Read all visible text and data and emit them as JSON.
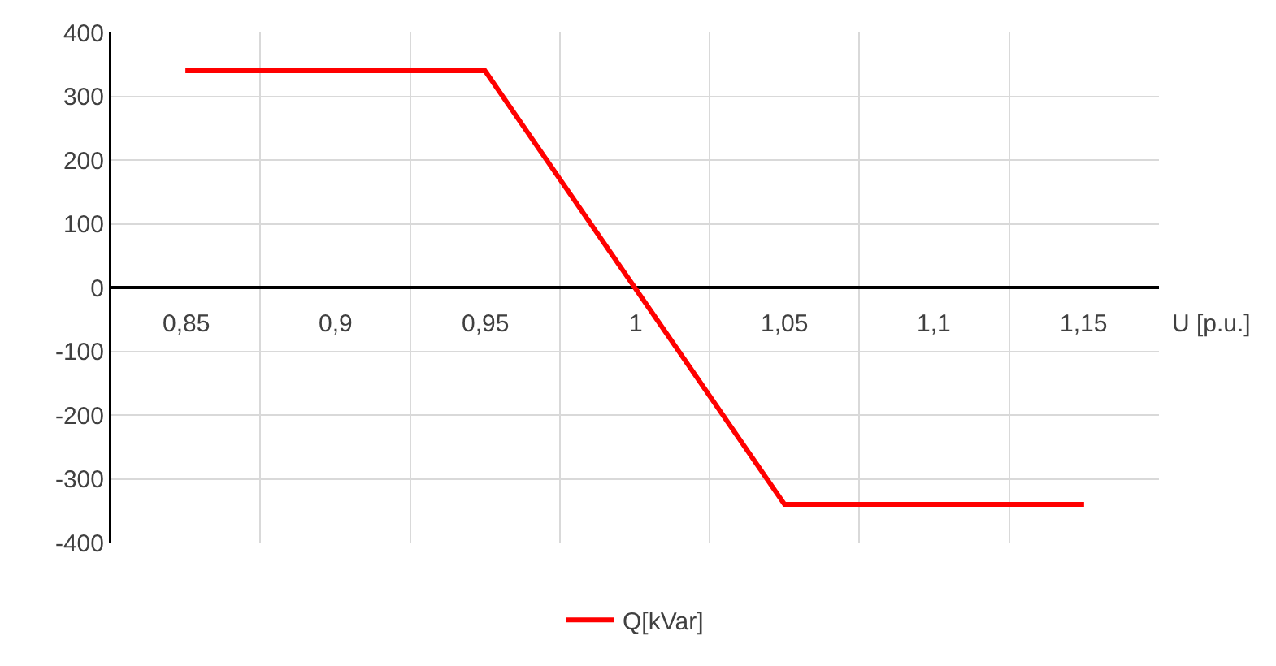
{
  "chart_data": {
    "type": "line",
    "xlabel": "U [p.u.]",
    "categories": [
      "0,85",
      "0,9",
      "0,95",
      "1",
      "1,05",
      "1,1",
      "1,15"
    ],
    "series": [
      {
        "name": "Q[kVar]",
        "color": "#ff0000",
        "values": [
          340,
          340,
          340,
          0,
          -340,
          -340,
          -340
        ]
      }
    ],
    "ylim": [
      -400,
      400
    ],
    "yticks": [
      -400,
      -300,
      -200,
      -100,
      0,
      100,
      200,
      300,
      400
    ],
    "grid": true,
    "legend": "bottom",
    "marker": "none",
    "line_style": "solid"
  }
}
